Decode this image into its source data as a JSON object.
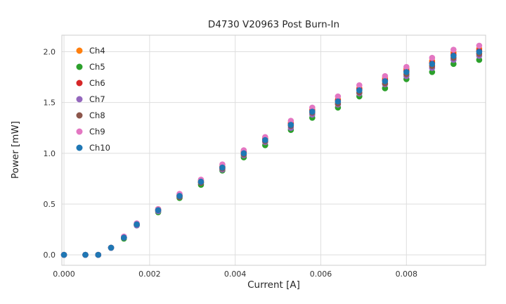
{
  "figure": {
    "title": "D4730 V20963 Post Burn-In",
    "xlabel": "Current [A]",
    "ylabel": "Power [mW]"
  },
  "chart_data": {
    "type": "scatter",
    "title": "D4730 V20963 Post Burn-In",
    "xlabel": "Current [A]",
    "ylabel": "Power [mW]",
    "grid": true,
    "legend_position": "upper left",
    "xlim": [
      -5e-05,
      0.00985
    ],
    "ylim": [
      -0.103,
      2.163
    ],
    "x_ticks": [
      0.0,
      0.002,
      0.004,
      0.006,
      0.008
    ],
    "x_tick_labels": [
      "0.000",
      "0.002",
      "0.004",
      "0.006",
      "0.008"
    ],
    "y_ticks": [
      0.0,
      0.5,
      1.0,
      1.5,
      2.0
    ],
    "y_tick_labels": [
      "0.0",
      "0.5",
      "1.0",
      "1.5",
      "2.0"
    ],
    "x": [
      0.0,
      0.0005,
      0.0008,
      0.0011,
      0.0014,
      0.0017,
      0.0022,
      0.0027,
      0.0032,
      0.0037,
      0.0042,
      0.0047,
      0.0053,
      0.0058,
      0.0064,
      0.0069,
      0.0075,
      0.008,
      0.0086,
      0.0091,
      0.0097
    ],
    "series": [
      {
        "name": "Ch4",
        "color": "#ff7f0e",
        "values": [
          0.0,
          0.0,
          0.0,
          0.07,
          0.17,
          0.3,
          0.45,
          0.59,
          0.73,
          0.87,
          1.02,
          1.15,
          1.3,
          1.43,
          1.53,
          1.64,
          1.74,
          1.83,
          1.91,
          1.99,
          2.03
        ]
      },
      {
        "name": "Ch5",
        "color": "#2ca02c",
        "values": [
          0.0,
          0.0,
          0.0,
          0.07,
          0.16,
          0.29,
          0.42,
          0.56,
          0.69,
          0.83,
          0.96,
          1.08,
          1.23,
          1.35,
          1.45,
          1.56,
          1.64,
          1.73,
          1.8,
          1.88,
          1.92
        ]
      },
      {
        "name": "Ch6",
        "color": "#d62728",
        "values": [
          0.0,
          0.0,
          0.0,
          0.07,
          0.17,
          0.3,
          0.44,
          0.58,
          0.72,
          0.86,
          1.01,
          1.14,
          1.29,
          1.42,
          1.52,
          1.63,
          1.72,
          1.81,
          1.89,
          1.97,
          2.01
        ]
      },
      {
        "name": "Ch7",
        "color": "#9467bd",
        "values": [
          0.0,
          0.0,
          0.0,
          0.07,
          0.17,
          0.29,
          0.43,
          0.57,
          0.71,
          0.84,
          0.98,
          1.11,
          1.25,
          1.38,
          1.48,
          1.59,
          1.68,
          1.76,
          1.84,
          1.92,
          1.96
        ]
      },
      {
        "name": "Ch8",
        "color": "#8c564b",
        "values": [
          0.0,
          0.0,
          0.0,
          0.07,
          0.17,
          0.3,
          0.44,
          0.57,
          0.71,
          0.85,
          0.99,
          1.12,
          1.27,
          1.4,
          1.49,
          1.6,
          1.69,
          1.78,
          1.86,
          1.94,
          1.98
        ]
      },
      {
        "name": "Ch9",
        "color": "#e377c2",
        "values": [
          0.0,
          0.0,
          0.0,
          0.07,
          0.18,
          0.31,
          0.45,
          0.6,
          0.74,
          0.89,
          1.03,
          1.16,
          1.32,
          1.45,
          1.56,
          1.67,
          1.76,
          1.85,
          1.94,
          2.02,
          2.06
        ]
      },
      {
        "name": "Ch10",
        "color": "#1f77b4",
        "values": [
          0.0,
          0.0,
          0.0,
          0.07,
          0.17,
          0.3,
          0.44,
          0.58,
          0.72,
          0.86,
          1.0,
          1.13,
          1.28,
          1.41,
          1.51,
          1.62,
          1.71,
          1.8,
          1.88,
          1.96,
          2.0
        ]
      }
    ]
  }
}
